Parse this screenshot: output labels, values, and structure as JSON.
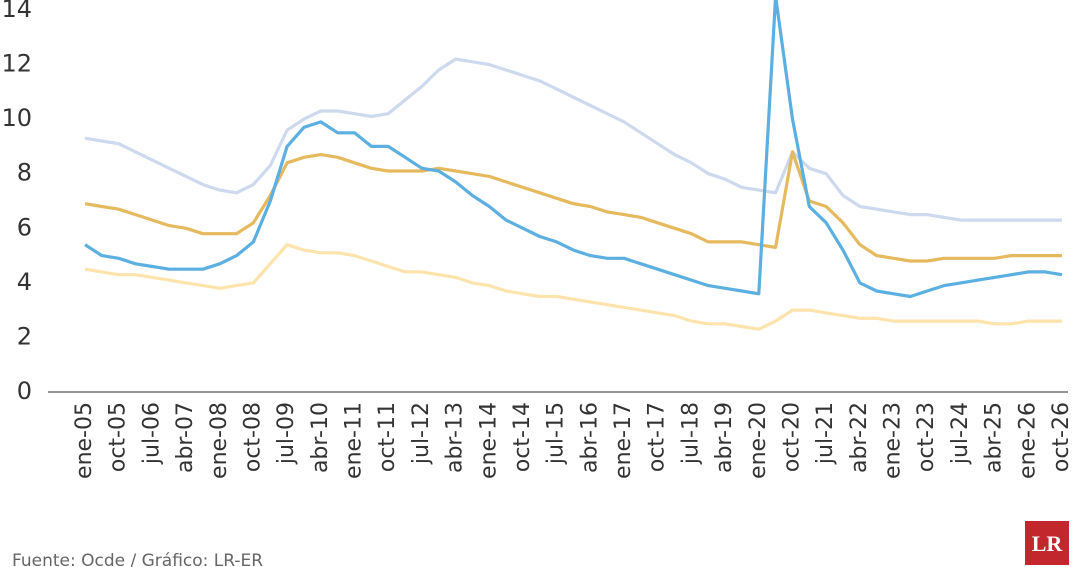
{
  "chart_data": {
    "type": "line",
    "categories": [
      "ene-05",
      null,
      "oct-05",
      null,
      "jul-06",
      null,
      "abr-07",
      null,
      "ene-08",
      null,
      "oct-08",
      null,
      "jul-09",
      null,
      "abr-10",
      null,
      "ene-11",
      null,
      "oct-11",
      null,
      "jul-12",
      null,
      "abr-13",
      null,
      "ene-14",
      null,
      "oct-14",
      null,
      "jul-15",
      null,
      "abr-16",
      null,
      "ene-17",
      null,
      "oct-17",
      null,
      "jul-18",
      null,
      "abr-19",
      null,
      "ene-20",
      null,
      "oct-20",
      null,
      "jul-21",
      null,
      "abr-22",
      null,
      "ene-23",
      null,
      "oct-23",
      null,
      "jul-24",
      null,
      "abr-25",
      null,
      "ene-26",
      null,
      "oct-26"
    ],
    "series": [
      {
        "color": "#cdd9ec",
        "values": [
          9.3,
          9.2,
          9.1,
          8.8,
          8.5,
          8.2,
          7.9,
          7.6,
          7.4,
          7.3,
          7.6,
          8.3,
          9.6,
          10.0,
          10.3,
          10.3,
          10.2,
          10.1,
          10.2,
          10.7,
          11.2,
          11.8,
          12.2,
          12.1,
          12.0,
          11.8,
          11.6,
          11.4,
          11.1,
          10.8,
          10.5,
          10.2,
          9.9,
          9.5,
          9.1,
          8.7,
          8.4,
          8.0,
          7.8,
          7.5,
          7.4,
          7.3,
          8.8,
          8.2,
          8.0,
          7.2,
          6.8,
          6.7,
          6.6,
          6.5,
          6.5,
          6.4,
          6.3,
          6.3,
          6.3,
          6.3,
          6.3,
          6.3,
          6.3
        ]
      },
      {
        "color": "#fde3ac",
        "values": [
          4.5,
          4.4,
          4.3,
          4.3,
          4.2,
          4.1,
          4.0,
          3.9,
          3.8,
          3.9,
          4.0,
          4.7,
          5.4,
          5.2,
          5.1,
          5.1,
          5.0,
          4.8,
          4.6,
          4.4,
          4.4,
          4.3,
          4.2,
          4.0,
          3.9,
          3.7,
          3.6,
          3.5,
          3.5,
          3.4,
          3.3,
          3.2,
          3.1,
          3.0,
          2.9,
          2.8,
          2.6,
          2.5,
          2.5,
          2.4,
          2.3,
          2.6,
          3.0,
          3.0,
          2.9,
          2.8,
          2.7,
          2.7,
          2.6,
          2.6,
          2.6,
          2.6,
          2.6,
          2.6,
          2.5,
          2.5,
          2.6,
          2.6,
          2.6
        ]
      },
      {
        "color": "#e5b95e",
        "values": [
          6.9,
          6.8,
          6.7,
          6.5,
          6.3,
          6.1,
          6.0,
          5.8,
          5.8,
          5.8,
          6.2,
          7.2,
          8.4,
          8.6,
          8.7,
          8.6,
          8.4,
          8.2,
          8.1,
          8.1,
          8.1,
          8.2,
          8.1,
          8.0,
          7.9,
          7.7,
          7.5,
          7.3,
          7.1,
          6.9,
          6.8,
          6.6,
          6.5,
          6.4,
          6.2,
          6.0,
          5.8,
          5.5,
          5.5,
          5.5,
          5.4,
          5.3,
          8.8,
          7.0,
          6.8,
          6.2,
          5.4,
          5.0,
          4.9,
          4.8,
          4.8,
          4.9,
          4.9,
          4.9,
          4.9,
          5.0,
          5.0,
          5.0,
          5.0
        ]
      },
      {
        "color": "#5bafe1",
        "values": [
          5.4,
          5.0,
          4.9,
          4.7,
          4.6,
          4.5,
          4.5,
          4.5,
          4.7,
          5.0,
          5.5,
          7.0,
          9.0,
          9.7,
          9.9,
          9.5,
          9.5,
          9.0,
          9.0,
          8.6,
          8.2,
          8.1,
          7.7,
          7.2,
          6.8,
          6.3,
          6.0,
          5.7,
          5.5,
          5.2,
          5.0,
          4.9,
          4.9,
          4.7,
          4.5,
          4.3,
          4.1,
          3.9,
          3.8,
          3.7,
          3.6,
          14.5,
          10.0,
          6.8,
          6.2,
          5.2,
          4.0,
          3.7,
          3.6,
          3.5,
          3.7,
          3.9,
          4.0,
          4.1,
          4.2,
          4.3,
          4.4,
          4.4,
          4.3
        ]
      }
    ],
    "ylim": [
      0,
      14
    ],
    "yticks": [
      0,
      2,
      4,
      6,
      8,
      10,
      12,
      14
    ],
    "grid": false
  },
  "footer": "Fuente: Ocde / Gráfico: LR-ER",
  "logo": "LR"
}
